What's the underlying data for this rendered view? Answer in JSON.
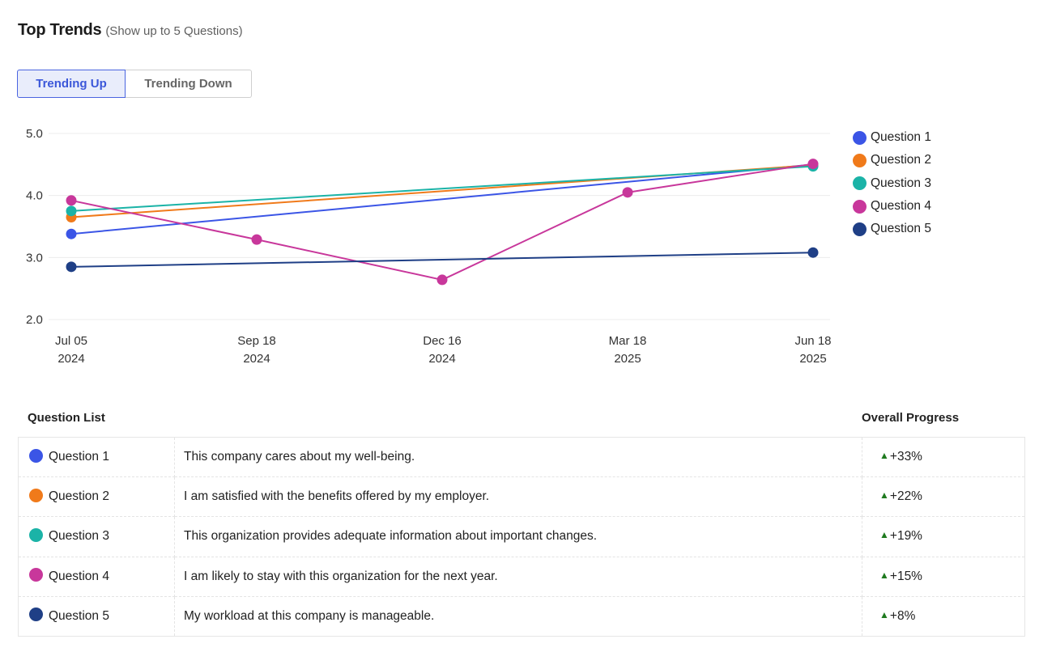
{
  "header": {
    "title": "Top Trends",
    "subtitle": "(Show up to 5 Questions)"
  },
  "toggle": {
    "trending_up": "Trending Up",
    "trending_down": "Trending Down",
    "active": "trending_up"
  },
  "chart_data": {
    "type": "line",
    "x_labels": [
      [
        "Jul 05",
        "2024"
      ],
      [
        "Sep 18",
        "2024"
      ],
      [
        "Dec 16",
        "2024"
      ],
      [
        "Mar 18",
        "2025"
      ],
      [
        "Jun 18",
        "2025"
      ]
    ],
    "y_ticks": [
      "5.0",
      "4.0",
      "3.0",
      "2.0"
    ],
    "ylim": [
      2.0,
      5.0
    ],
    "grid": true,
    "legend_position": "right",
    "series": [
      {
        "name": "Question 1",
        "color": "#3b55e6",
        "points": [
          [
            0,
            3.38
          ],
          [
            4,
            4.5
          ]
        ]
      },
      {
        "name": "Question 2",
        "color": "#f07a1a",
        "points": [
          [
            0,
            3.65
          ],
          [
            4,
            4.49
          ]
        ]
      },
      {
        "name": "Question 3",
        "color": "#1bb3a7",
        "points": [
          [
            0,
            3.75
          ],
          [
            4,
            4.47
          ]
        ]
      },
      {
        "name": "Question 4",
        "color": "#c8379b",
        "points": [
          [
            0,
            3.92
          ],
          [
            1,
            3.29
          ],
          [
            2,
            2.64
          ],
          [
            3,
            4.05
          ],
          [
            4,
            4.51
          ]
        ]
      },
      {
        "name": "Question 5",
        "color": "#1f3f86",
        "points": [
          [
            0,
            2.85
          ],
          [
            4,
            3.08
          ]
        ]
      }
    ]
  },
  "table": {
    "col_question_list": "Question List",
    "col_overall_progress": "Overall Progress",
    "rows": [
      {
        "label": "Question 1",
        "text": "This company cares about my well-being.",
        "progress": "+33%",
        "color": "#3b55e6"
      },
      {
        "label": "Question 2",
        "text": "I am satisfied with the benefits offered by my employer.",
        "progress": "+22%",
        "color": "#f07a1a"
      },
      {
        "label": "Question 3",
        "text": "This organization provides adequate information about important changes.",
        "progress": "+19%",
        "color": "#1bb3a7"
      },
      {
        "label": "Question 4",
        "text": "I am likely to stay with this organization for the next year.",
        "progress": "+15%",
        "color": "#c8379b"
      },
      {
        "label": "Question 5",
        "text": "My workload at this company is manageable.",
        "progress": "+8%",
        "color": "#1f3f86"
      }
    ]
  }
}
